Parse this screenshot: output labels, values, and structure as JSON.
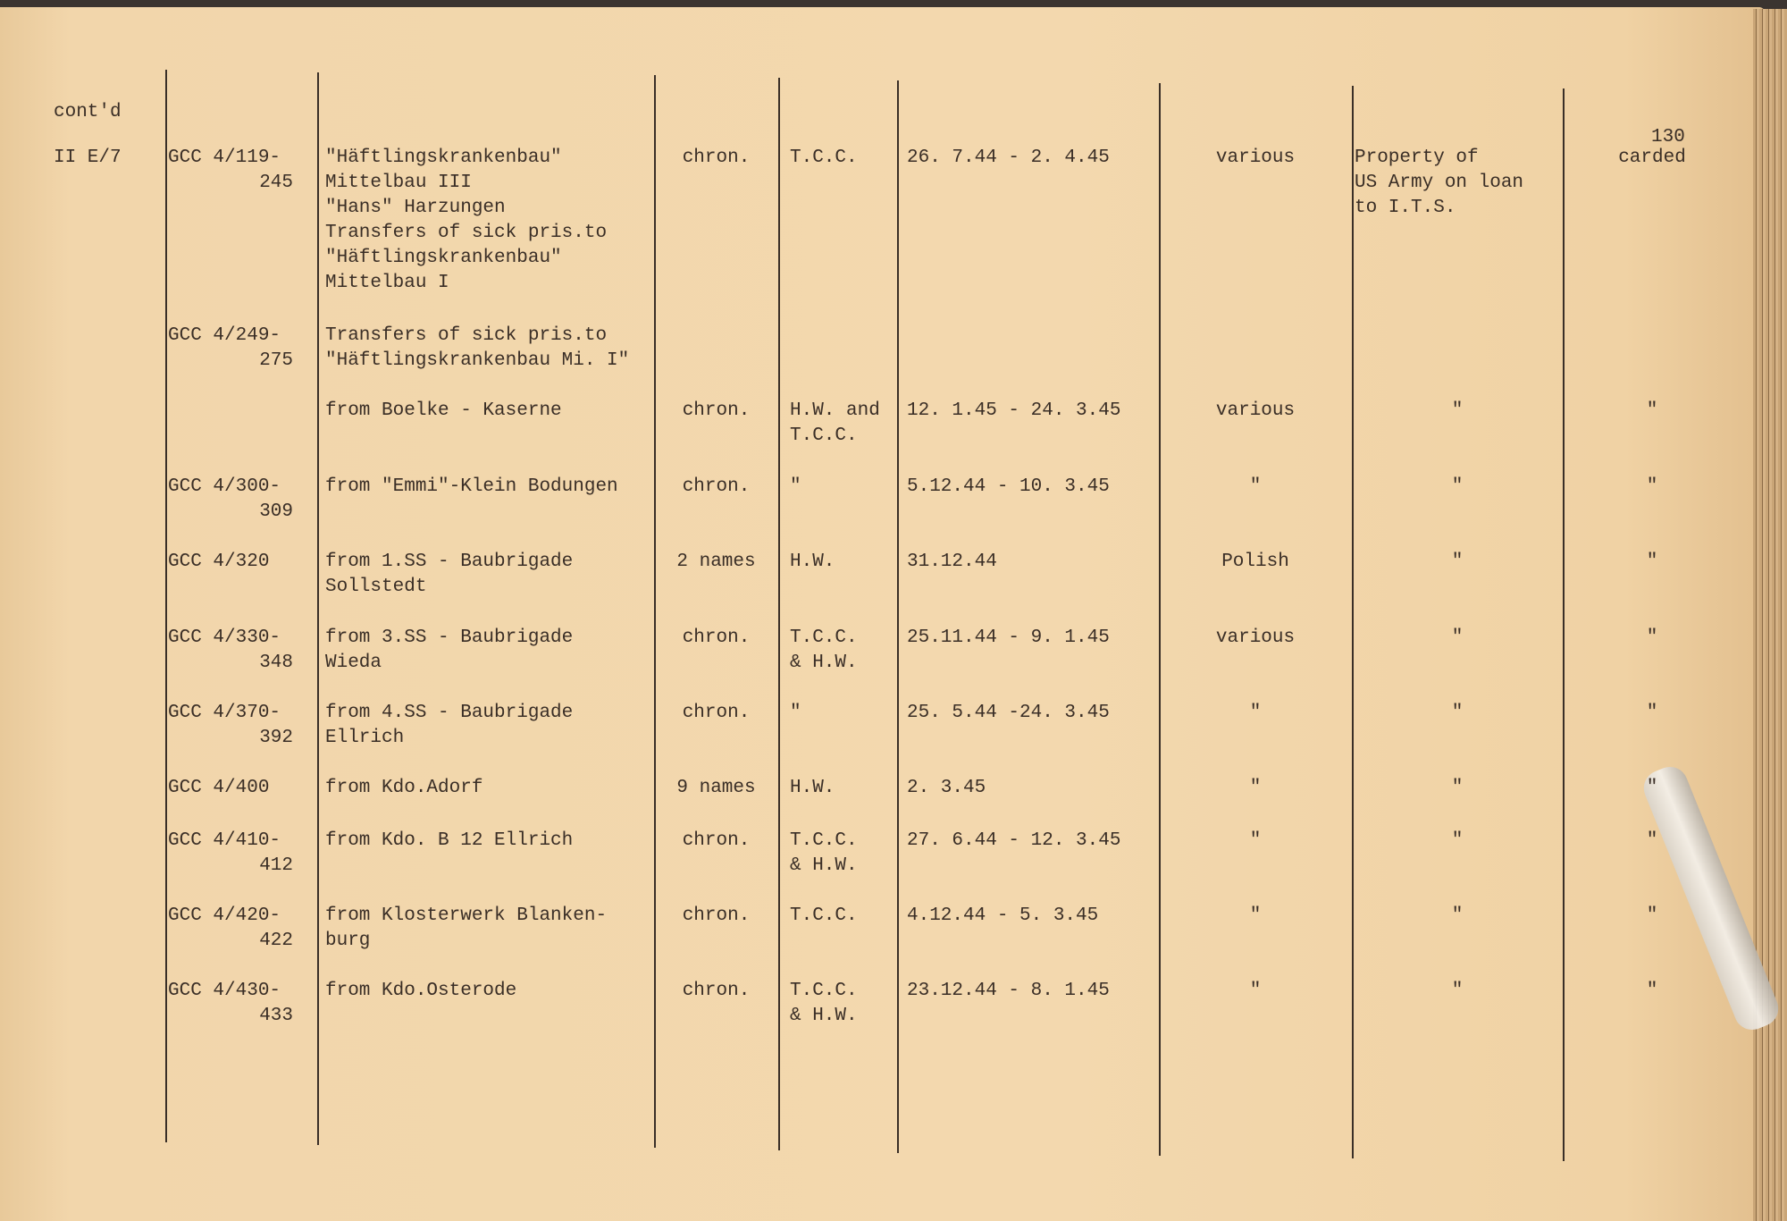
{
  "header": {
    "contd": "cont'd",
    "page_number": "130"
  },
  "section": "II E/7",
  "rows": [
    {
      "ref": "GCC 4/119-",
      "ref2": "245",
      "desc": [
        "\"Häftlingskrankenbau\"",
        "Mittelbau III",
        "\"Hans\" Harzungen",
        "Transfers of sick pris.to",
        "\"Häftlingskrankenbau\"",
        "Mittelbau I"
      ],
      "type": "chron.",
      "source": [
        "T.C.C."
      ],
      "dates": "26. 7.44 - 2. 4.45",
      "lang": "various",
      "owner": [
        "Property of",
        "US Army on loan",
        "to I.T.S."
      ],
      "status": "carded"
    },
    {
      "ref": "GCC 4/249-",
      "ref2": "275",
      "desc": [
        "Transfers of sick pris.to",
        "\"Häftlingskrankenbau Mi. I\""
      ],
      "type": "",
      "source": [],
      "dates": "",
      "lang": "",
      "owner": [],
      "status": ""
    },
    {
      "ref": "",
      "ref2": "",
      "desc": [
        "from Boelke - Kaserne"
      ],
      "type": "chron.",
      "source": [
        "H.W. and",
        "T.C.C."
      ],
      "dates": "12. 1.45 - 24. 3.45",
      "lang": "various",
      "owner": [
        "\""
      ],
      "status": "\""
    },
    {
      "ref": "GCC 4/300-",
      "ref2": "309",
      "desc": [
        "from \"Emmi\"-Klein Bodungen"
      ],
      "type": "chron.",
      "source": [
        "\""
      ],
      "dates": "5.12.44 - 10. 3.45",
      "lang": "\"",
      "owner": [
        "\""
      ],
      "status": "\""
    },
    {
      "ref": "GCC 4/320",
      "ref2": "",
      "desc": [
        "from 1.SS - Baubrigade",
        "Sollstedt"
      ],
      "type": "2 names",
      "source": [
        "H.W."
      ],
      "dates": "31.12.44",
      "lang": "Polish",
      "owner": [
        "\""
      ],
      "status": "\""
    },
    {
      "ref": "GCC 4/330-",
      "ref2": "348",
      "desc": [
        "from 3.SS - Baubrigade",
        "Wieda"
      ],
      "type": "chron.",
      "source": [
        "T.C.C.",
        "& H.W."
      ],
      "dates": "25.11.44 - 9. 1.45",
      "lang": "various",
      "owner": [
        "\""
      ],
      "status": "\""
    },
    {
      "ref": "GCC 4/370-",
      "ref2": "392",
      "desc": [
        "from 4.SS - Baubrigade",
        "Ellrich"
      ],
      "type": "chron.",
      "source": [
        "\""
      ],
      "dates": "25. 5.44 -24. 3.45",
      "lang": "\"",
      "owner": [
        "\""
      ],
      "status": "\""
    },
    {
      "ref": "GCC 4/400",
      "ref2": "",
      "desc": [
        "from Kdo.Adorf"
      ],
      "type": "9 names",
      "source": [
        "H.W."
      ],
      "dates": "2. 3.45",
      "lang": "\"",
      "owner": [
        "\""
      ],
      "status": "\""
    },
    {
      "ref": "GCC 4/410-",
      "ref2": "412",
      "desc": [
        "from Kdo. B 12 Ellrich"
      ],
      "type": "chron.",
      "source": [
        "T.C.C.",
        "& H.W."
      ],
      "dates": "27. 6.44 - 12. 3.45",
      "lang": "\"",
      "owner": [
        "\""
      ],
      "status": "\""
    },
    {
      "ref": "GCC 4/420-",
      "ref2": "422",
      "desc": [
        "from Klosterwerk Blanken-",
        "burg"
      ],
      "type": "chron.",
      "source": [
        "T.C.C."
      ],
      "dates": "4.12.44 - 5. 3.45",
      "lang": "\"",
      "owner": [
        "\""
      ],
      "status": "\""
    },
    {
      "ref": "GCC 4/430-",
      "ref2": "433",
      "desc": [
        "from Kdo.Osterode"
      ],
      "type": "chron.",
      "source": [
        "T.C.C.",
        "& H.W."
      ],
      "dates": "23.12.44 - 8. 1.45",
      "lang": "\"",
      "owner": [
        "\""
      ],
      "status": "\""
    }
  ]
}
